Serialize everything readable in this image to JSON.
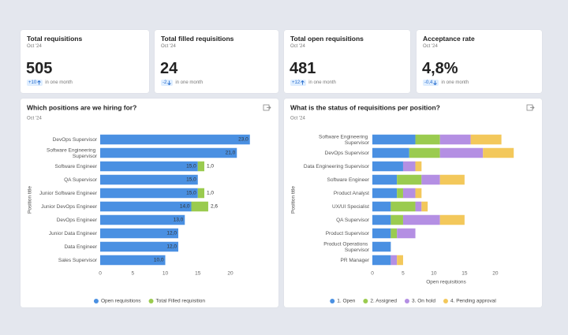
{
  "kpis": [
    {
      "title": "Total requisitions",
      "period": "Oct '24",
      "value": "505",
      "change": "+10",
      "note": "in one month"
    },
    {
      "title": "Total filled requisitions",
      "period": "Oct '24",
      "value": "24",
      "change": "-2",
      "note": "in one month"
    },
    {
      "title": "Total open requisitions",
      "period": "Oct '24",
      "value": "481",
      "change": "+12",
      "note": "in one month"
    },
    {
      "title": "Acceptance rate",
      "period": "Oct '24",
      "value": "4,8%",
      "change": "-0,4",
      "note": "in one month"
    }
  ],
  "chart_data": [
    {
      "type": "bar",
      "orientation": "horizontal",
      "stacked": true,
      "title": "Which positions are we hiring for?",
      "subtitle": "Oct '24",
      "y_label": "Position title",
      "categories": [
        "DevOps Supervisor",
        "Software Engineering Supervisor",
        "Software Engineer",
        "QA Supervisor",
        "Junior Software Engineer",
        "Junior DevOps Engineer",
        "DevOps Engineer",
        "Junior Data Engineer",
        "Data Engineer",
        "Sales Supervisor"
      ],
      "series": [
        {
          "name": "Open requisitions",
          "color": "#4a90e2",
          "values": [
            23,
            21,
            15,
            15,
            15,
            14,
            13,
            12,
            12,
            10
          ],
          "value_labels": [
            "23,0",
            "21,0",
            "15,0",
            "15,0",
            "15,0",
            "14,0",
            "13,0",
            "12,0",
            "12,0",
            "10,0"
          ]
        },
        {
          "name": "Total Filled requisition",
          "color": "#9acb4f",
          "values": [
            null,
            null,
            1,
            null,
            1,
            2.6,
            null,
            null,
            null,
            null
          ],
          "value_labels": [
            null,
            null,
            "1,0",
            null,
            "1,0",
            "2,6",
            null,
            null,
            null,
            null
          ]
        }
      ],
      "xlim": [
        0,
        24
      ],
      "xticks": [
        0,
        5,
        10,
        15,
        20
      ],
      "legend": "bottom"
    },
    {
      "type": "bar",
      "orientation": "horizontal",
      "stacked": true,
      "title": "What is the status of requisitions per position?",
      "subtitle": "Oct '24",
      "y_label": "Position title",
      "x_label": "Open requisitions",
      "categories": [
        "Software Engineering Supervisor",
        "DevOps Supervisor",
        "Data Engineering Supervisor",
        "Software Engineer",
        "Product Analyst",
        "UX/UI Specialist",
        "QA Supervisor",
        "Product Supervisor",
        "Product Operations Supervisor",
        "PR Manager"
      ],
      "series": [
        {
          "name": "1. Open",
          "color": "#4a90e2",
          "values": [
            7,
            6,
            5,
            4,
            4,
            3,
            3,
            3,
            3,
            3
          ]
        },
        {
          "name": "2. Assigned",
          "color": "#9acb4f",
          "values": [
            4,
            5,
            null,
            4,
            1,
            4,
            2,
            1,
            null,
            null
          ]
        },
        {
          "name": "3. On hold",
          "color": "#b48fe3",
          "values": [
            5,
            7,
            2,
            3,
            2,
            1,
            6,
            3,
            null,
            1
          ]
        },
        {
          "name": "4. Pending approval",
          "color": "#f3c85b",
          "values": [
            5,
            5,
            1,
            4,
            1,
            1,
            4,
            null,
            null,
            1
          ]
        }
      ],
      "xlim": [
        0,
        24
      ],
      "xticks": [
        0,
        5,
        10,
        15,
        20
      ],
      "legend": "bottom"
    }
  ]
}
